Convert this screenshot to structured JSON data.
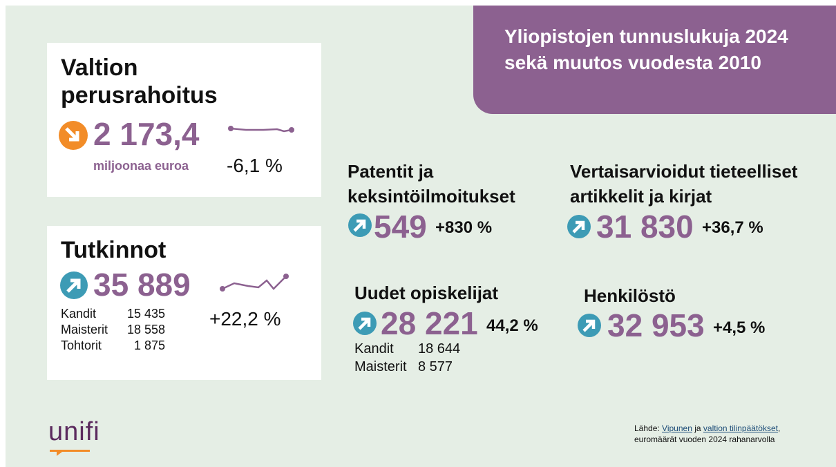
{
  "header": {
    "title": "Yliopistojen tunnuslukuja 2024 sekä muutos vuodesta 2010"
  },
  "funding": {
    "heading": "Valtion perusrahoitus",
    "value": "2 173,4",
    "unit": "miljoonaa euroa",
    "change": "-6,1 %"
  },
  "degrees": {
    "heading": "Tutkinnot",
    "value": "35 889",
    "change": "+22,2 %",
    "rows": [
      [
        "Kandit",
        "15 435"
      ],
      [
        "Maisterit",
        "18 558"
      ],
      [
        "Tohtorit",
        "1 875"
      ]
    ]
  },
  "patents": {
    "heading": "Patentit ja keksintöilmoitukset",
    "value": "549",
    "change": "+830 %"
  },
  "articles": {
    "heading": "Vertaisarvioidut tieteelliset artikkelit ja kirjat",
    "value": "31 830",
    "change": "+36,7 %"
  },
  "students": {
    "heading": "Uudet opiskelijat",
    "value": "28 221",
    "change": "44,2 %",
    "rows": [
      [
        "Kandit",
        "18 644"
      ],
      [
        "Maisterit",
        "8 577"
      ]
    ]
  },
  "staff": {
    "heading": "Henkilöstö",
    "value": "32 953",
    "change": "+4,5 %"
  },
  "footer": {
    "logo": "unifi",
    "source_prefix": "Lähde:",
    "link1": "Vipunen",
    "conj": "ja",
    "link2": "valtion tilinpäätökset",
    "comma": ",",
    "source_line2": "euromäärät vuoden 2024 rahanarvolla"
  }
}
